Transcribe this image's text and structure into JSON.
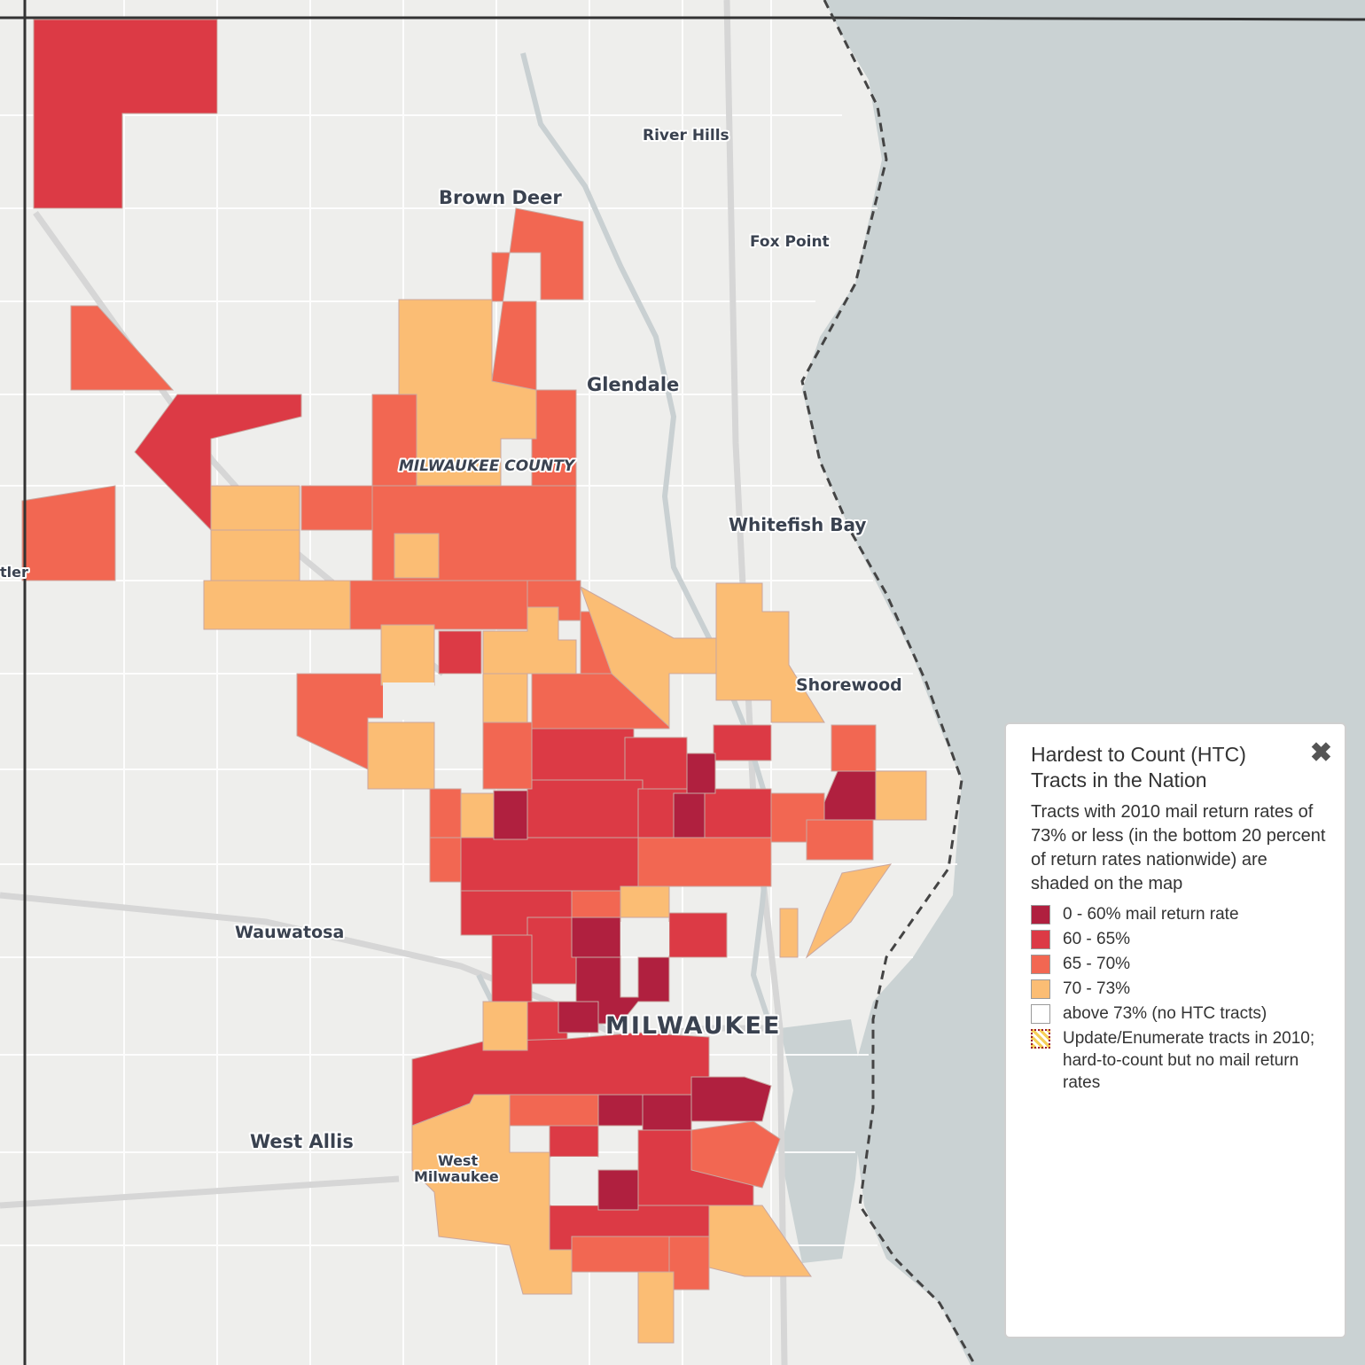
{
  "map": {
    "colors": {
      "water": "#cad2d3",
      "land": "#eeeeec",
      "road": "#ffffff",
      "boundary": "#555555",
      "class_0_60": "#b0203f",
      "class_60_65": "#dc3a45",
      "class_65_70": "#f26752",
      "class_70_73": "#fbbd74",
      "class_above_73": "#ffffff"
    },
    "places": [
      {
        "id": "river-hills",
        "label": "River Hills"
      },
      {
        "id": "brown-deer",
        "label": "Brown Deer"
      },
      {
        "id": "fox-point",
        "label": "Fox Point"
      },
      {
        "id": "glendale",
        "label": "Glendale"
      },
      {
        "id": "milwaukee-county",
        "label": "MILWAUKEE COUNTY"
      },
      {
        "id": "whitefish-bay",
        "label": "Whitefish Bay"
      },
      {
        "id": "butler",
        "label": "tler"
      },
      {
        "id": "shorewood",
        "label": "Shorewood"
      },
      {
        "id": "wauwatosa",
        "label": "Wauwatosa"
      },
      {
        "id": "milwaukee",
        "label": "MILWAUKEE"
      },
      {
        "id": "west-allis",
        "label": "West Allis"
      },
      {
        "id": "west-milwaukee-1",
        "label": "West"
      },
      {
        "id": "west-milwaukee-2",
        "label": "Milwaukee"
      }
    ]
  },
  "legend": {
    "title": "Hardest to Count (HTC) Tracts in the Nation",
    "close_icon": "close-icon",
    "description": "Tracts with 2010 mail return rates of 73% or less (in the bottom 20 percent of return rates nationwide) are shaded on the map",
    "items": [
      {
        "label": "0 - 60% mail return rate",
        "color": "#b0203f"
      },
      {
        "label": "60 - 65%",
        "color": "#dc3a45"
      },
      {
        "label": "65 - 70%",
        "color": "#f26752"
      },
      {
        "label": "70 - 73%",
        "color": "#fbbd74"
      },
      {
        "label": "above 73% (no HTC tracts)",
        "color": "#ffffff"
      },
      {
        "label": "Update/Enumerate tracts in 2010; hard-to-count but no mail return rates",
        "color": "hatch"
      }
    ]
  }
}
